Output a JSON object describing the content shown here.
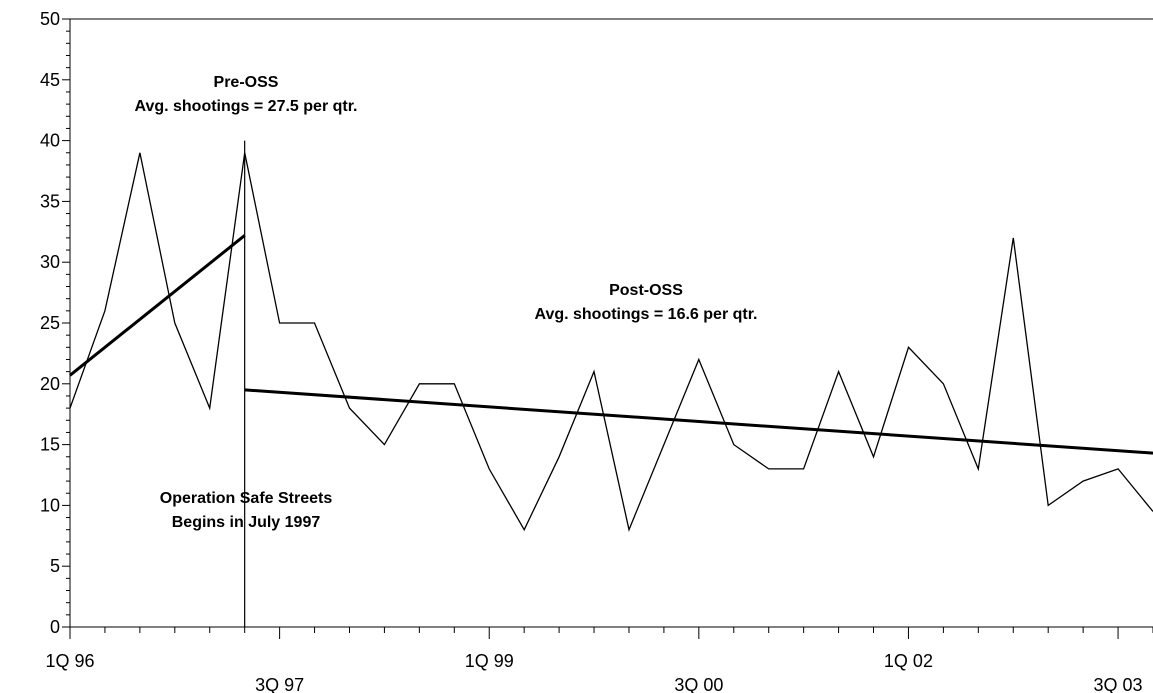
{
  "chart_data": {
    "type": "line",
    "title": "",
    "xlabel": "",
    "ylabel": "",
    "ylim": [
      0,
      50
    ],
    "y_ticks": [
      0,
      5,
      10,
      15,
      20,
      25,
      30,
      35,
      40,
      45,
      50
    ],
    "x_tick_labels": [
      {
        "label": "1Q 96",
        "index": 0,
        "row": 1
      },
      {
        "label": "3Q 97",
        "index": 6,
        "row": 2
      },
      {
        "label": "1Q 99",
        "index": 12,
        "row": 1
      },
      {
        "label": "3Q 00",
        "index": 18,
        "row": 2
      },
      {
        "label": "1Q 02",
        "index": 24,
        "row": 1
      },
      {
        "label": "3Q 03",
        "index": 30,
        "row": 2
      }
    ],
    "x_count": 32,
    "series": [
      {
        "values": [
          18,
          26,
          39,
          25,
          18,
          39,
          25,
          25,
          18,
          15,
          20,
          20,
          13,
          8,
          14,
          21,
          8,
          15,
          22,
          15,
          13,
          13,
          21,
          14,
          23,
          20,
          13,
          32,
          10,
          12,
          13,
          9.5
        ]
      }
    ],
    "trend_lines": [
      {
        "x_start": 0,
        "y_start": 20.7,
        "x_end": 5,
        "y_end": 32.2
      },
      {
        "x_start": 5,
        "y_start": 19.5,
        "x_end": 31,
        "y_end": 14.3
      }
    ],
    "intervention_index": 5,
    "annotations": {
      "pre_title": "Pre-OSS",
      "pre_avg": "Avg. shootings = 27.5 per qtr.",
      "post_title": "Post-OSS",
      "post_avg": "Avg. shootings = 16.6 per qtr.",
      "event_line1": "Operation Safe Streets",
      "event_line2": "Begins in July 1997"
    },
    "grid": false,
    "legend": "none"
  }
}
